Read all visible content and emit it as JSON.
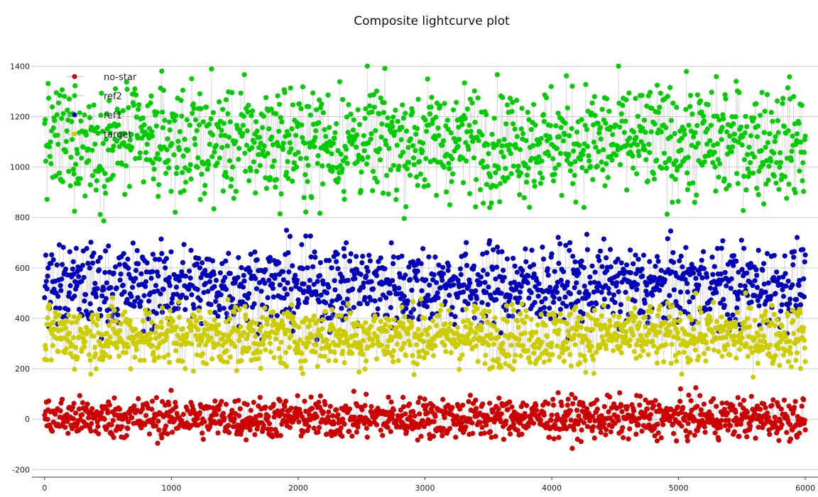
{
  "chart_data": {
    "type": "scatter",
    "title": "Composite lightcurve plot",
    "xlabel": "",
    "ylabel": "",
    "xlim": [
      -100,
      6100
    ],
    "ylim": [
      -230,
      1550
    ],
    "grid": "horizontal",
    "legend_placement": "top-left",
    "xticks": [
      0,
      1000,
      2000,
      3000,
      4000,
      5000,
      6000
    ],
    "xtick_labels": [
      "0",
      "1000",
      "2000",
      "3000",
      "4000",
      "5000",
      "6000"
    ],
    "yticks": [
      -200,
      0,
      200,
      400,
      600,
      800,
      1000,
      1200,
      1400
    ],
    "ytick_labels": [
      "-200",
      "0",
      "200",
      "400",
      "600",
      "800",
      "1000",
      "1200",
      "1400"
    ],
    "x_range": [
      0,
      6000
    ],
    "series": [
      {
        "name": "no-star",
        "color": "#cc0000",
        "mean": 5,
        "spread": 40,
        "min": -170,
        "max": 160
      },
      {
        "name": "ref2",
        "color": "#00cc00",
        "mean": 1100,
        "spread": 110,
        "min": 700,
        "max": 1500
      },
      {
        "name": "ref1",
        "color": "#0000bb",
        "mean": 530,
        "spread": 80,
        "min": 240,
        "max": 820
      },
      {
        "name": "target",
        "color": "#cccc00",
        "mean": 330,
        "spread": 60,
        "min": -30,
        "max": 600
      }
    ]
  },
  "colors": {
    "connector_line": "#b8b8b8",
    "grid": "#cccccc",
    "axis": "#333333"
  }
}
